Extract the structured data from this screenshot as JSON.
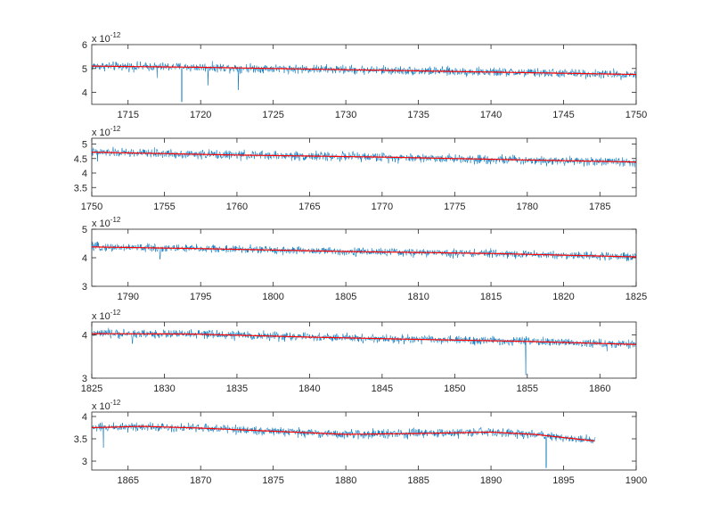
{
  "figure": {
    "background": "#ffffff",
    "axis_color": "#262626"
  },
  "chart_data": [
    {
      "type": "line",
      "xlim": [
        1712.5,
        1750
      ],
      "ylim": [
        3.5,
        6
      ],
      "xticks": [
        1715,
        1720,
        1725,
        1730,
        1735,
        1740,
        1745,
        1750
      ],
      "yticks": [
        4,
        5,
        6
      ],
      "y_exponent": "x 10",
      "y_exponent_power": "-12",
      "series": [
        {
          "color": "#0072BD",
          "kind": "noisy",
          "data_end": 1750,
          "noise": 0.13,
          "trend": [
            [
              1712.5,
              5.1
            ],
            [
              1720,
              5.05
            ],
            [
              1730,
              4.95
            ],
            [
              1740,
              4.85
            ],
            [
              1750,
              4.75
            ]
          ],
          "dips": [
            [
              1717.0,
              4.6
            ],
            [
              1718.7,
              3.6
            ],
            [
              1720.5,
              4.3
            ],
            [
              1722.6,
              4.1
            ],
            [
              1746.6,
              4.8
            ]
          ]
        },
        {
          "color": "#FF0000",
          "kind": "trend",
          "data_end": 1750,
          "trend": [
            [
              1712.5,
              5.1
            ],
            [
              1720,
              5.05
            ],
            [
              1730,
              4.95
            ],
            [
              1740,
              4.85
            ],
            [
              1750,
              4.75
            ]
          ]
        }
      ]
    },
    {
      "type": "line",
      "xlim": [
        1750,
        1787.5
      ],
      "ylim": [
        3.2,
        5.2
      ],
      "xticks": [
        1750,
        1755,
        1760,
        1765,
        1770,
        1775,
        1780,
        1785
      ],
      "yticks": [
        3.5,
        4,
        4.5,
        5
      ],
      "y_exponent": "x 10",
      "y_exponent_power": "-12",
      "series": [
        {
          "color": "#0072BD",
          "kind": "noisy",
          "data_end": 1787.5,
          "noise": 0.11,
          "trend": [
            [
              1750,
              4.72
            ],
            [
              1760,
              4.62
            ],
            [
              1770,
              4.55
            ],
            [
              1780,
              4.45
            ],
            [
              1787.5,
              4.38
            ]
          ],
          "dips": [
            [
              1750.4,
              4.4
            ],
            [
              1787.4,
              4.2
            ]
          ]
        },
        {
          "color": "#FF0000",
          "kind": "trend",
          "data_end": 1787.5,
          "trend": [
            [
              1750,
              4.72
            ],
            [
              1760,
              4.62
            ],
            [
              1770,
              4.55
            ],
            [
              1780,
              4.45
            ],
            [
              1787.5,
              4.38
            ]
          ]
        }
      ]
    },
    {
      "type": "line",
      "xlim": [
        1787.5,
        1825
      ],
      "ylim": [
        3,
        5
      ],
      "xticks": [
        1790,
        1795,
        1800,
        1805,
        1810,
        1815,
        1820,
        1825
      ],
      "yticks": [
        3,
        4,
        5
      ],
      "y_exponent": "x 10",
      "y_exponent_power": "-12",
      "series": [
        {
          "color": "#0072BD",
          "kind": "noisy",
          "data_end": 1825,
          "noise": 0.1,
          "trend": [
            [
              1787.5,
              4.38
            ],
            [
              1795,
              4.32
            ],
            [
              1805,
              4.22
            ],
            [
              1815,
              4.15
            ],
            [
              1825,
              4.03
            ]
          ],
          "dips": [
            [
              1792.2,
              3.95
            ]
          ]
        },
        {
          "color": "#FF0000",
          "kind": "trend",
          "data_end": 1825,
          "trend": [
            [
              1787.5,
              4.38
            ],
            [
              1795,
              4.32
            ],
            [
              1805,
              4.22
            ],
            [
              1815,
              4.15
            ],
            [
              1825,
              4.03
            ]
          ]
        }
      ]
    },
    {
      "type": "line",
      "xlim": [
        1825,
        1862.5
      ],
      "ylim": [
        3,
        4.3
      ],
      "xticks": [
        1825,
        1830,
        1835,
        1840,
        1845,
        1850,
        1855,
        1860
      ],
      "yticks": [
        3,
        4
      ],
      "y_exponent": "x 10",
      "y_exponent_power": "-12",
      "series": [
        {
          "color": "#0072BD",
          "kind": "noisy",
          "data_end": 1862.5,
          "noise": 0.07,
          "trend": [
            [
              1825,
              4.03
            ],
            [
              1832,
              4.02
            ],
            [
              1840,
              3.95
            ],
            [
              1847,
              3.9
            ],
            [
              1855,
              3.85
            ],
            [
              1862.5,
              3.78
            ]
          ],
          "dips": [
            [
              1827.8,
              3.8
            ],
            [
              1854.9,
              3.07
            ],
            [
              1860.5,
              3.62
            ]
          ]
        },
        {
          "color": "#FF0000",
          "kind": "trend",
          "data_end": 1862.5,
          "trend": [
            [
              1825,
              4.03
            ],
            [
              1832,
              4.02
            ],
            [
              1840,
              3.95
            ],
            [
              1847,
              3.9
            ],
            [
              1855,
              3.85
            ],
            [
              1862.5,
              3.78
            ]
          ]
        }
      ]
    },
    {
      "type": "line",
      "xlim": [
        1862.5,
        1900
      ],
      "ylim": [
        2.8,
        4.1
      ],
      "xticks": [
        1865,
        1870,
        1875,
        1880,
        1885,
        1890,
        1895,
        1900
      ],
      "yticks": [
        3,
        3.5,
        4
      ],
      "y_exponent": "x 10",
      "y_exponent_power": "-12",
      "series": [
        {
          "color": "#0072BD",
          "kind": "noisy",
          "data_end": 1897.2,
          "noise": 0.07,
          "trend": [
            [
              1862.5,
              3.75
            ],
            [
              1866,
              3.78
            ],
            [
              1870,
              3.74
            ],
            [
              1875,
              3.67
            ],
            [
              1880,
              3.6
            ],
            [
              1885,
              3.62
            ],
            [
              1890,
              3.65
            ],
            [
              1893,
              3.6
            ],
            [
              1897.2,
              3.45
            ]
          ],
          "dips": [
            [
              1863.3,
              3.3
            ],
            [
              1893.8,
              2.85
            ]
          ]
        },
        {
          "color": "#FF0000",
          "kind": "trend",
          "data_end": 1897.2,
          "trend": [
            [
              1862.5,
              3.75
            ],
            [
              1866,
              3.78
            ],
            [
              1870,
              3.74
            ],
            [
              1875,
              3.67
            ],
            [
              1880,
              3.6
            ],
            [
              1885,
              3.62
            ],
            [
              1890,
              3.65
            ],
            [
              1893,
              3.6
            ],
            [
              1897.2,
              3.45
            ]
          ]
        }
      ]
    }
  ]
}
